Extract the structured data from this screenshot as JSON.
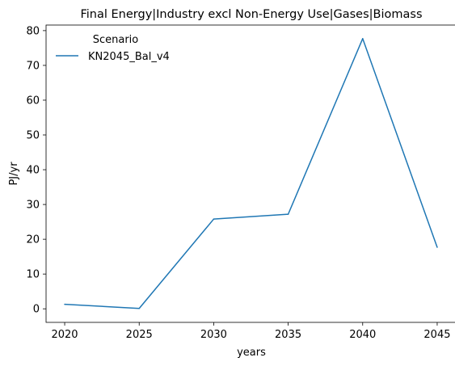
{
  "chart_data": {
    "type": "line",
    "title": "Final Energy|Industry excl Non-Energy Use|Gases|Biomass",
    "xlabel": "years",
    "ylabel": "PJ/yr",
    "x": [
      2020,
      2025,
      2030,
      2035,
      2040,
      2045
    ],
    "xticks": [
      "2020",
      "2025",
      "2030",
      "2035",
      "2040",
      "2045"
    ],
    "yticks": [
      "0",
      "10",
      "20",
      "30",
      "40",
      "50",
      "60",
      "70",
      "80"
    ],
    "xlim": [
      2018.75,
      2046.25
    ],
    "ylim": [
      -3.9,
      81.6
    ],
    "grid": false,
    "legend": {
      "title": "Scenario",
      "placement": "upper-left"
    },
    "series": [
      {
        "name": "KN2045_Bal_v4",
        "color": "#1f77b4",
        "values": [
          1.3,
          0.1,
          25.8,
          27.2,
          77.7,
          17.7
        ]
      }
    ]
  }
}
